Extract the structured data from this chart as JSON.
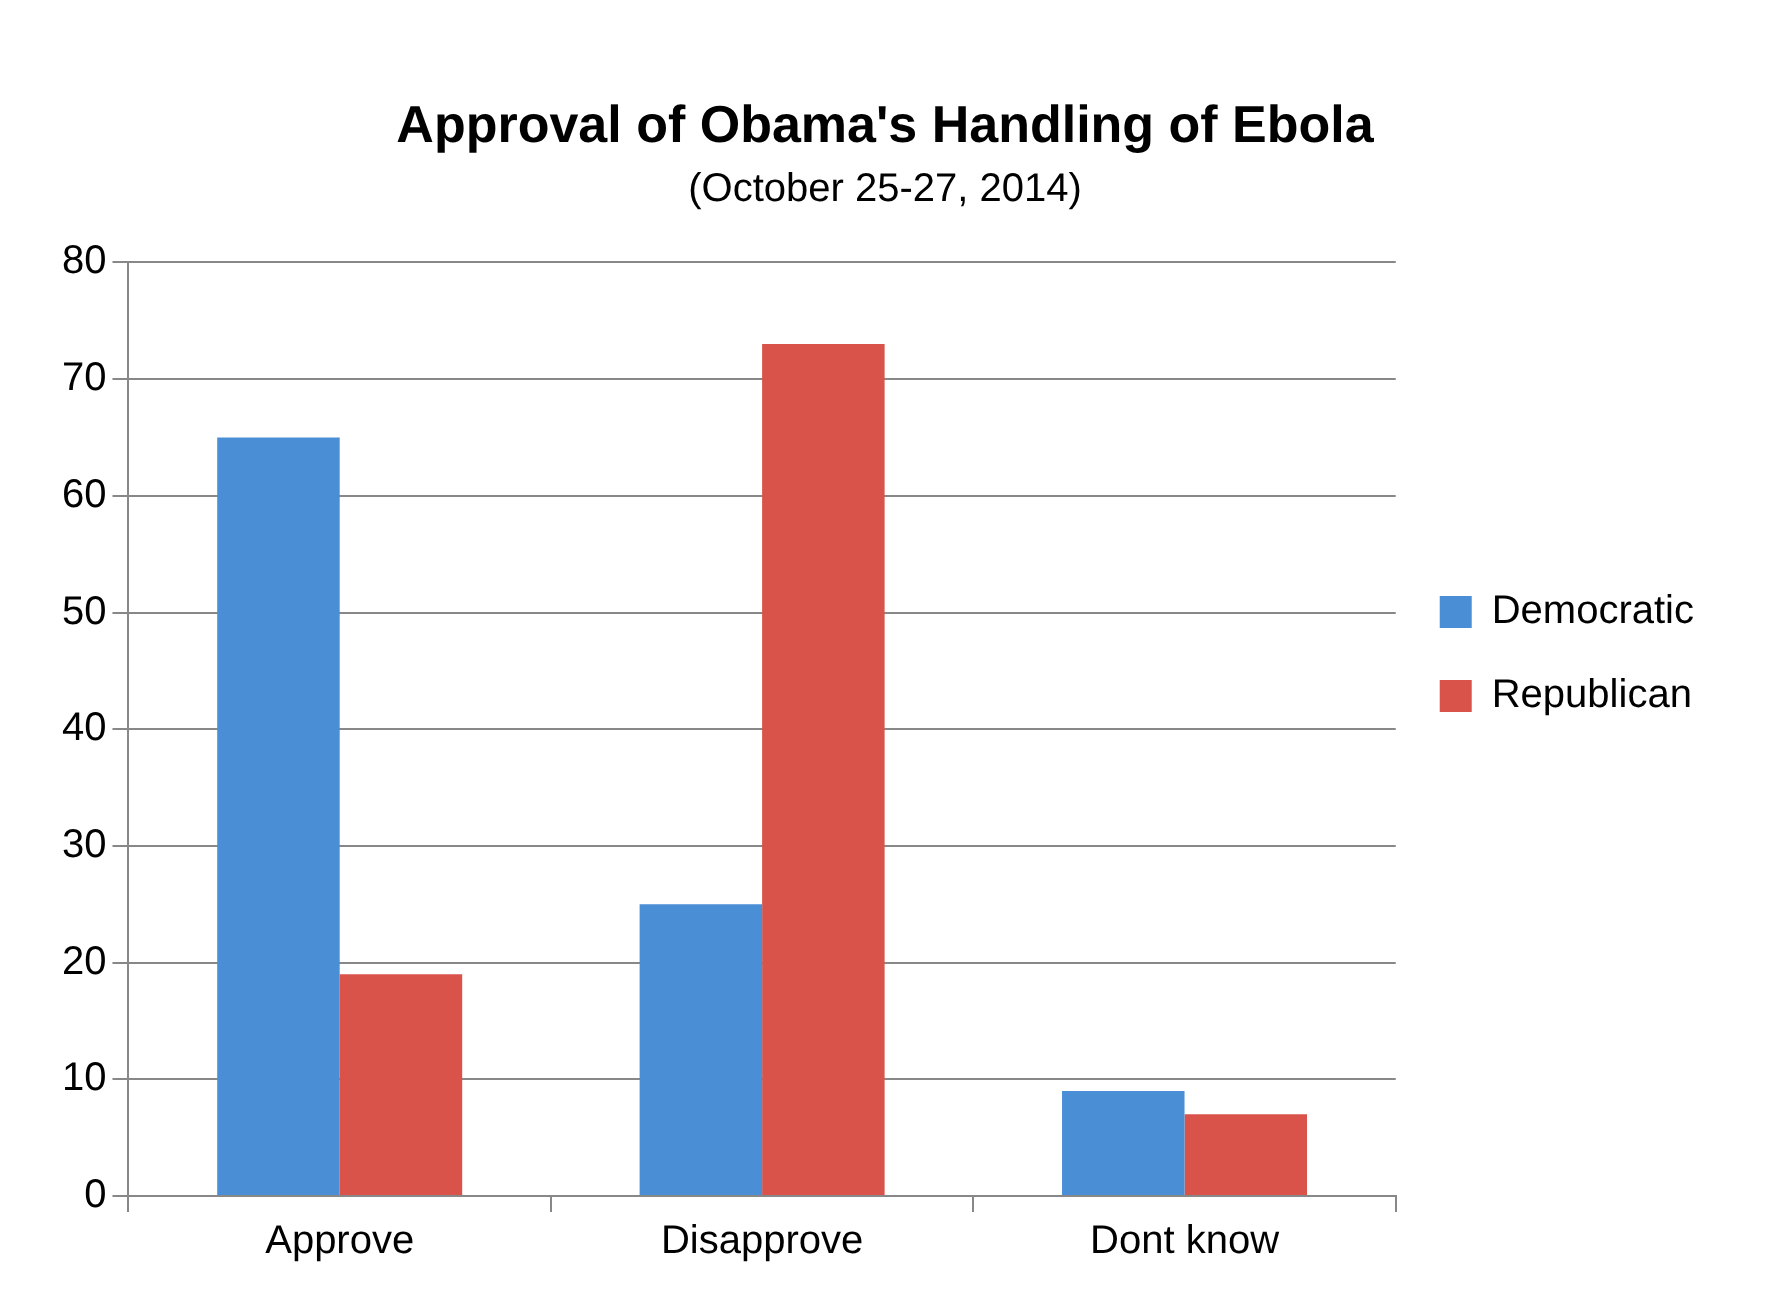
{
  "chart_data": {
    "type": "bar",
    "title": "Approval of Obama's Handling of Ebola",
    "subtitle": "(October 25-27, 2014)",
    "categories": [
      "Approve",
      "Disapprove",
      "Dont know"
    ],
    "series": [
      {
        "name": "Democratic",
        "color": "#4a8fd6",
        "values": [
          65,
          25,
          9
        ]
      },
      {
        "name": "Republican",
        "color": "#d9534a",
        "values": [
          19,
          73,
          7
        ]
      }
    ],
    "ylim": [
      0,
      80
    ],
    "yticks": [
      0,
      10,
      20,
      30,
      40,
      50,
      60,
      70,
      80
    ],
    "grid": "y",
    "legend": "right"
  }
}
